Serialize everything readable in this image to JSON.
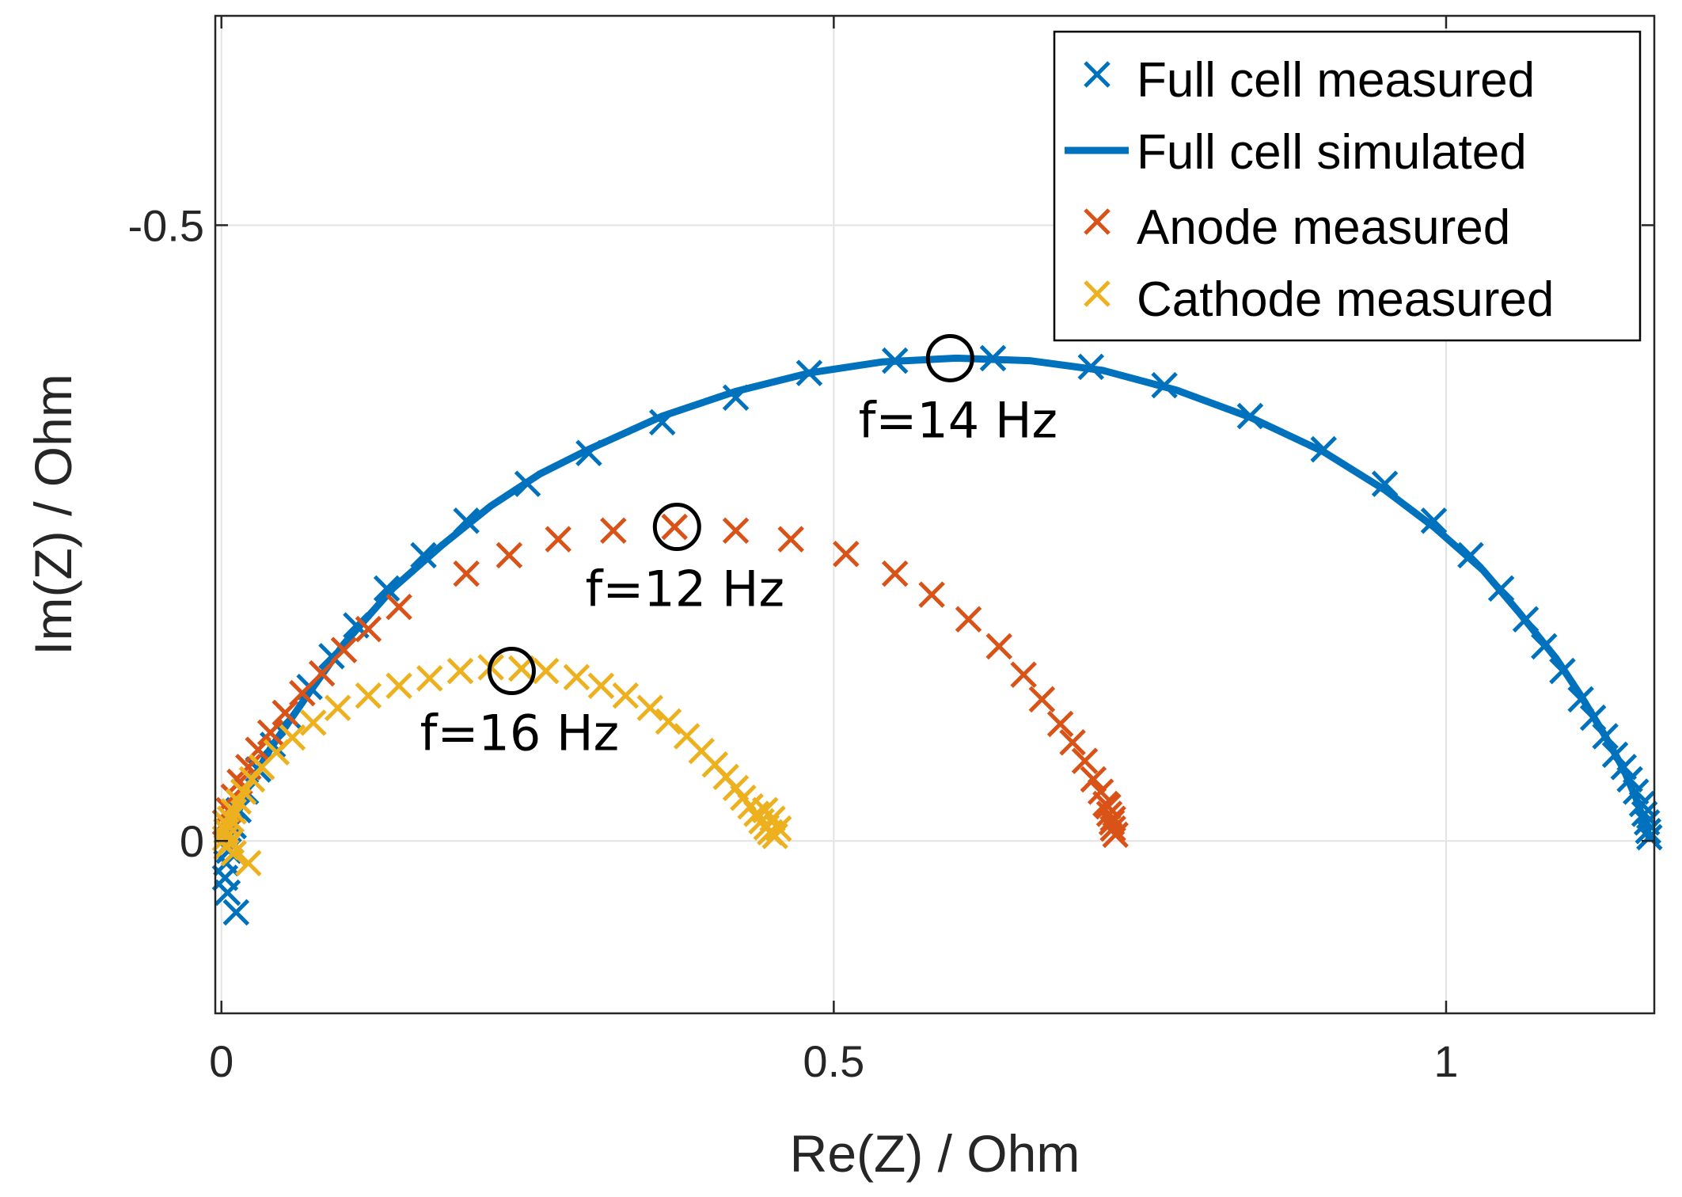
{
  "chart_data": {
    "type": "scatter",
    "title": "",
    "xlabel": "Re(Z) / Ohm",
    "ylabel": "Im(Z) / Ohm",
    "xlim": [
      -0.005,
      1.17
    ],
    "ylim": [
      0.14,
      -0.67
    ],
    "y_axis_reversed": true,
    "grid": true,
    "x_ticks": [
      {
        "value": 0,
        "label": "0"
      },
      {
        "value": 0.5,
        "label": "0.5"
      },
      {
        "value": 1,
        "label": "1"
      }
    ],
    "y_ticks": [
      {
        "value": -0.5,
        "label": "-0.5"
      },
      {
        "value": 0,
        "label": "0"
      }
    ],
    "legend": {
      "position": "top-right",
      "entries": [
        {
          "label": "Full cell measured",
          "marker": "x",
          "color": "#0072BD"
        },
        {
          "label": "Full cell simulated",
          "marker": "line",
          "color": "#0072BD"
        },
        {
          "label": "Anode measured",
          "marker": "x",
          "color": "#D95319"
        },
        {
          "label": "Cathode measured",
          "marker": "x",
          "color": "#EDB120"
        }
      ]
    },
    "series": [
      {
        "name": "Full cell measured",
        "style": "x",
        "color": "#0072BD",
        "points": [
          [
            0.012,
            0.058
          ],
          [
            0.005,
            0.042
          ],
          [
            0.003,
            0.03
          ],
          [
            0.004,
            0.018
          ],
          [
            0.006,
            0.008
          ],
          [
            0.008,
            0.0
          ],
          [
            0.01,
            -0.012
          ],
          [
            0.014,
            -0.025
          ],
          [
            0.02,
            -0.04
          ],
          [
            0.03,
            -0.058
          ],
          [
            0.042,
            -0.078
          ],
          [
            0.056,
            -0.1
          ],
          [
            0.072,
            -0.125
          ],
          [
            0.09,
            -0.15
          ],
          [
            0.11,
            -0.175
          ],
          [
            0.135,
            -0.205
          ],
          [
            0.165,
            -0.232
          ],
          [
            0.2,
            -0.26
          ],
          [
            0.25,
            -0.29
          ],
          [
            0.3,
            -0.315
          ],
          [
            0.36,
            -0.34
          ],
          [
            0.42,
            -0.36
          ],
          [
            0.48,
            -0.38
          ],
          [
            0.55,
            -0.39
          ],
          [
            0.63,
            -0.392
          ],
          [
            0.71,
            -0.385
          ],
          [
            0.77,
            -0.37
          ],
          [
            0.84,
            -0.345
          ],
          [
            0.9,
            -0.318
          ],
          [
            0.95,
            -0.29
          ],
          [
            0.99,
            -0.26
          ],
          [
            1.02,
            -0.232
          ],
          [
            1.045,
            -0.205
          ],
          [
            1.065,
            -0.18
          ],
          [
            1.08,
            -0.158
          ],
          [
            1.095,
            -0.138
          ],
          [
            1.11,
            -0.115
          ],
          [
            1.12,
            -0.1
          ],
          [
            1.13,
            -0.085
          ],
          [
            1.138,
            -0.07
          ],
          [
            1.145,
            -0.06
          ],
          [
            1.15,
            -0.05
          ],
          [
            1.155,
            -0.04
          ],
          [
            1.16,
            -0.03
          ],
          [
            1.162,
            -0.022
          ],
          [
            1.164,
            -0.015
          ],
          [
            1.165,
            -0.008
          ],
          [
            1.166,
            -0.003
          ]
        ]
      },
      {
        "name": "Full cell simulated",
        "style": "line",
        "color": "#0072BD",
        "points": [
          [
            0.005,
            0.0
          ],
          [
            0.02,
            -0.04
          ],
          [
            0.04,
            -0.075
          ],
          [
            0.07,
            -0.118
          ],
          [
            0.1,
            -0.16
          ],
          [
            0.14,
            -0.205
          ],
          [
            0.18,
            -0.24
          ],
          [
            0.22,
            -0.272
          ],
          [
            0.26,
            -0.298
          ],
          [
            0.3,
            -0.318
          ],
          [
            0.36,
            -0.345
          ],
          [
            0.42,
            -0.365
          ],
          [
            0.48,
            -0.38
          ],
          [
            0.54,
            -0.389
          ],
          [
            0.6,
            -0.392
          ],
          [
            0.66,
            -0.39
          ],
          [
            0.72,
            -0.382
          ],
          [
            0.78,
            -0.366
          ],
          [
            0.84,
            -0.344
          ],
          [
            0.9,
            -0.316
          ],
          [
            0.95,
            -0.285
          ],
          [
            0.99,
            -0.255
          ],
          [
            1.03,
            -0.22
          ],
          [
            1.06,
            -0.185
          ],
          [
            1.09,
            -0.148
          ],
          [
            1.11,
            -0.118
          ],
          [
            1.13,
            -0.085
          ],
          [
            1.145,
            -0.058
          ],
          [
            1.155,
            -0.035
          ],
          [
            1.163,
            -0.012
          ],
          [
            1.166,
            -0.002
          ]
        ]
      },
      {
        "name": "Anode measured",
        "style": "x",
        "color": "#D95319",
        "points": [
          [
            0.003,
            -0.015
          ],
          [
            0.006,
            -0.025
          ],
          [
            0.01,
            -0.036
          ],
          [
            0.015,
            -0.048
          ],
          [
            0.022,
            -0.06
          ],
          [
            0.03,
            -0.074
          ],
          [
            0.04,
            -0.088
          ],
          [
            0.052,
            -0.104
          ],
          [
            0.066,
            -0.12
          ],
          [
            0.082,
            -0.136
          ],
          [
            0.1,
            -0.155
          ],
          [
            0.12,
            -0.172
          ],
          [
            0.145,
            -0.19
          ],
          [
            0.2,
            -0.217
          ],
          [
            0.235,
            -0.232
          ],
          [
            0.275,
            -0.245
          ],
          [
            0.32,
            -0.252
          ],
          [
            0.37,
            -0.255
          ],
          [
            0.42,
            -0.252
          ],
          [
            0.465,
            -0.245
          ],
          [
            0.51,
            -0.233
          ],
          [
            0.55,
            -0.217
          ],
          [
            0.58,
            -0.2
          ],
          [
            0.61,
            -0.18
          ],
          [
            0.635,
            -0.158
          ],
          [
            0.655,
            -0.135
          ],
          [
            0.67,
            -0.115
          ],
          [
            0.685,
            -0.095
          ],
          [
            0.695,
            -0.08
          ],
          [
            0.705,
            -0.065
          ],
          [
            0.712,
            -0.05
          ],
          [
            0.718,
            -0.04
          ],
          [
            0.722,
            -0.03
          ],
          [
            0.725,
            -0.022
          ],
          [
            0.727,
            -0.015
          ],
          [
            0.728,
            -0.01
          ],
          [
            0.73,
            -0.005
          ],
          [
            0.728,
            -0.018
          ],
          [
            0.724,
            -0.028
          ]
        ]
      },
      {
        "name": "Cathode measured",
        "style": "x",
        "color": "#EDB120",
        "points": [
          [
            0.022,
            0.018
          ],
          [
            0.01,
            0.01
          ],
          [
            0.004,
            0.005
          ],
          [
            0.003,
            -0.002
          ],
          [
            0.004,
            -0.008
          ],
          [
            0.005,
            -0.013
          ],
          [
            0.007,
            -0.018
          ],
          [
            0.008,
            0.0
          ],
          [
            0.01,
            -0.024
          ],
          [
            0.014,
            -0.032
          ],
          [
            0.018,
            -0.04
          ],
          [
            0.025,
            -0.05
          ],
          [
            0.033,
            -0.06
          ],
          [
            0.045,
            -0.072
          ],
          [
            0.058,
            -0.084
          ],
          [
            0.075,
            -0.096
          ],
          [
            0.095,
            -0.108
          ],
          [
            0.12,
            -0.118
          ],
          [
            0.145,
            -0.126
          ],
          [
            0.17,
            -0.132
          ],
          [
            0.195,
            -0.138
          ],
          [
            0.22,
            -0.141
          ],
          [
            0.245,
            -0.14
          ],
          [
            0.265,
            -0.138
          ],
          [
            0.29,
            -0.133
          ],
          [
            0.31,
            -0.126
          ],
          [
            0.33,
            -0.118
          ],
          [
            0.35,
            -0.108
          ],
          [
            0.365,
            -0.097
          ],
          [
            0.38,
            -0.085
          ],
          [
            0.392,
            -0.073
          ],
          [
            0.403,
            -0.062
          ],
          [
            0.412,
            -0.052
          ],
          [
            0.42,
            -0.043
          ],
          [
            0.426,
            -0.035
          ],
          [
            0.432,
            -0.028
          ],
          [
            0.437,
            -0.022
          ],
          [
            0.441,
            -0.016
          ],
          [
            0.445,
            -0.011
          ],
          [
            0.448,
            -0.007
          ],
          [
            0.452,
            -0.004
          ],
          [
            0.455,
            -0.01
          ],
          [
            0.45,
            -0.018
          ],
          [
            0.444,
            -0.025
          ]
        ]
      }
    ],
    "annotations": [
      {
        "text": "f=14 Hz",
        "x": 0.595,
        "y": -0.392,
        "marker": "circle",
        "series": "Full cell"
      },
      {
        "text": "f=12 Hz",
        "x": 0.372,
        "y": -0.255,
        "marker": "circle",
        "series": "Anode"
      },
      {
        "text": "f=16 Hz",
        "x": 0.237,
        "y": -0.138,
        "marker": "circle",
        "series": "Cathode"
      }
    ]
  }
}
